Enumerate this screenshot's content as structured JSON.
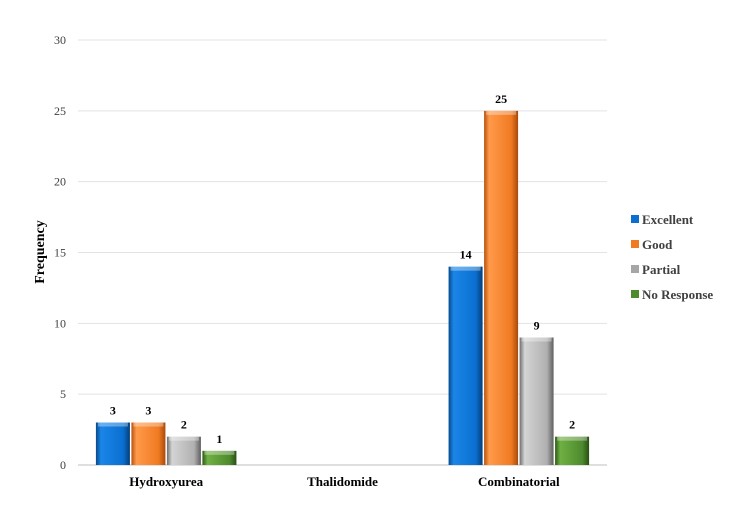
{
  "chart_data": {
    "type": "bar",
    "categories": [
      "Hydroxyurea",
      "Thalidomide",
      "Combinatorial"
    ],
    "series": [
      {
        "name": "Excellent",
        "color": "#0a6fd0",
        "values": [
          3,
          null,
          14
        ]
      },
      {
        "name": "Good",
        "color": "#f07a22",
        "values": [
          3,
          null,
          25
        ]
      },
      {
        "name": "Partial",
        "color": "#a6a6a6",
        "values": [
          2,
          null,
          9
        ]
      },
      {
        "name": "No Response",
        "color": "#4e8a2e",
        "values": [
          1,
          null,
          2
        ]
      }
    ],
    "ylabel": "Frequency",
    "ylim": [
      0,
      30
    ],
    "yticks": [
      0,
      5,
      10,
      15,
      20,
      25,
      30
    ],
    "grid": true,
    "legend_position": "right"
  }
}
